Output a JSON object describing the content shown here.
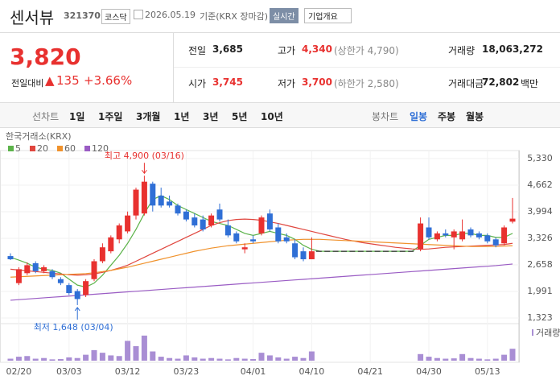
{
  "header": {
    "name": "센서뷰",
    "code": "321370",
    "market": "코스닥",
    "date": "2026.05.19",
    "basis": "기준(KRX 장마감)",
    "realtime": "실시간",
    "overview": "기업개요"
  },
  "quote": {
    "price": "3,820",
    "change_label": "전일대비",
    "change": "135",
    "rate": "+3.66%",
    "items": [
      {
        "label": "전일",
        "value": "3,685"
      },
      {
        "label": "고가",
        "value": "4,340",
        "extra": "(상한가 4,790)"
      },
      {
        "label": "거래량",
        "value": "18,063,272"
      },
      {
        "label": "시가",
        "value": "3,745"
      },
      {
        "label": "저가",
        "value": "3,700",
        "extra": "(하한가 2,580)"
      },
      {
        "label": "거래대금",
        "value": "72,802",
        "unit": "백만"
      }
    ]
  },
  "tabs": {
    "line_label": "선차트",
    "line_periods": [
      "1일",
      "1주일",
      "3개월",
      "1년",
      "3년",
      "5년",
      "10년"
    ],
    "candle_label": "봉차트",
    "candle_periods": [
      "일봉",
      "주봉",
      "월봉"
    ]
  },
  "chart_data": {
    "type": "candlestick",
    "source": "한국거래소(KRX)",
    "up_color": "#e8312f",
    "down_color": "#2f6fd6",
    "categories": [
      null,
      "02/20",
      null,
      null,
      null,
      null,
      null,
      "03/03",
      null,
      null,
      null,
      null,
      null,
      null,
      "03/12",
      null,
      null,
      null,
      null,
      null,
      null,
      "03/23",
      null,
      null,
      null,
      null,
      null,
      null,
      null,
      "04/01",
      null,
      null,
      null,
      null,
      null,
      null,
      "04/10",
      null,
      null,
      null,
      null,
      null,
      null,
      "04/21",
      null,
      null,
      null,
      null,
      null,
      null,
      "04/30",
      null,
      null,
      null,
      null,
      null,
      null,
      "05/13",
      null,
      null,
      null
    ],
    "open": [
      2880,
      2200,
      2450,
      2700,
      2500,
      2500,
      2300,
      2150,
      2000,
      1900,
      2300,
      2750,
      3000,
      3300,
      3500,
      3900,
      3950,
      4700,
      4400,
      4250,
      4150,
      4000,
      3850,
      3800,
      3650,
      4050,
      3650,
      3450,
      3050,
      3300,
      3450,
      3950,
      3600,
      3350,
      3200,
      3000,
      2800,
      3000,
      3000,
      3000,
      3000,
      3000,
      3000,
      3000,
      3000,
      3000,
      3000,
      3000,
      3000,
      3050,
      3600,
      3300,
      3450,
      3350,
      3300,
      3550,
      3450,
      3400,
      3300,
      3200,
      3745
    ],
    "high": [
      2950,
      2600,
      2720,
      2750,
      2650,
      2550,
      2350,
      2200,
      2050,
      2300,
      2800,
      3200,
      3400,
      3700,
      4000,
      4600,
      4900,
      4750,
      4600,
      4400,
      4200,
      4050,
      3950,
      3900,
      3950,
      4200,
      3800,
      3500,
      3200,
      3400,
      3900,
      4050,
      3700,
      3450,
      3300,
      3100,
      3350,
      3000,
      3000,
      3000,
      3000,
      3000,
      3000,
      3000,
      3000,
      3000,
      3000,
      3000,
      3000,
      3850,
      3850,
      3500,
      3550,
      3550,
      3800,
      3600,
      3500,
      3450,
      3350,
      3650,
      4340
    ],
    "low": [
      2780,
      2150,
      2400,
      2450,
      2450,
      2300,
      2150,
      1900,
      1648,
      1850,
      2250,
      2700,
      2950,
      3200,
      3450,
      3800,
      3900,
      4000,
      4100,
      4100,
      3900,
      3750,
      3600,
      3500,
      3600,
      3750,
      3350,
      3200,
      2950,
      3200,
      3400,
      3500,
      3200,
      3200,
      2800,
      2750,
      2800,
      3000,
      3000,
      3000,
      3000,
      3000,
      3000,
      3000,
      3000,
      3000,
      3000,
      3000,
      3000,
      3000,
      3300,
      3250,
      3350,
      3050,
      3250,
      3350,
      3300,
      3200,
      3100,
      3150,
      3700
    ],
    "close": [
      2800,
      2550,
      2650,
      2500,
      2600,
      2350,
      2200,
      1950,
      1800,
      2250,
      2750,
      3100,
      3350,
      3650,
      3900,
      4550,
      4750,
      4150,
      4150,
      4150,
      3950,
      3800,
      3650,
      3550,
      3900,
      3800,
      3400,
      3250,
      3100,
      3250,
      3850,
      3550,
      3250,
      3250,
      2850,
      2800,
      3000,
      3000,
      3000,
      3000,
      3000,
      3000,
      3000,
      3000,
      3000,
      3000,
      3000,
      3000,
      3000,
      3700,
      3350,
      3450,
      3400,
      3500,
      3500,
      3400,
      3350,
      3250,
      3150,
      3600,
      3820
    ],
    "series": [
      {
        "name": "5",
        "color": "#5cb34a",
        "values": [
          2850,
          2780,
          2700,
          2600,
          2550,
          2520,
          2450,
          2300,
          2150,
          2100,
          2200,
          2400,
          2650,
          2900,
          3200,
          3550,
          3950,
          4300,
          4400,
          4300,
          4150,
          4050,
          3950,
          3850,
          3750,
          3700,
          3650,
          3550,
          3450,
          3400,
          3450,
          3500,
          3450,
          3400,
          3300,
          3150,
          3050,
          3000,
          3000,
          3000,
          3000,
          3000,
          3000,
          3000,
          3000,
          3000,
          3000,
          3000,
          3000,
          3150,
          3300,
          3350,
          3400,
          3400,
          3450,
          3450,
          3400,
          3400,
          3350,
          3350,
          3450
        ]
      },
      {
        "name": "20",
        "color": "#e0463e",
        "values": [
          2550,
          2530,
          2510,
          2490,
          2470,
          2450,
          2430,
          2410,
          2400,
          2410,
          2430,
          2470,
          2520,
          2580,
          2650,
          2750,
          2850,
          2950,
          3050,
          3150,
          3250,
          3350,
          3450,
          3550,
          3650,
          3720,
          3770,
          3800,
          3810,
          3800,
          3780,
          3740,
          3700,
          3650,
          3600,
          3550,
          3500,
          3450,
          3400,
          3350,
          3300,
          3260,
          3220,
          3190,
          3160,
          3130,
          3100,
          3080,
          3060,
          3050,
          3060,
          3080,
          3100,
          3110,
          3120,
          3130,
          3140,
          3150,
          3160,
          3170,
          3200
        ]
      },
      {
        "name": "60",
        "color": "#f0922c",
        "values": [
          2350,
          2360,
          2370,
          2380,
          2390,
          2400,
          2410,
          2420,
          2430,
          2440,
          2460,
          2490,
          2520,
          2560,
          2600,
          2650,
          2700,
          2750,
          2800,
          2850,
          2900,
          2950,
          3000,
          3040,
          3080,
          3110,
          3140,
          3160,
          3180,
          3200,
          3220,
          3240,
          3260,
          3280,
          3290,
          3300,
          3300,
          3300,
          3290,
          3280,
          3270,
          3260,
          3250,
          3240,
          3230,
          3220,
          3210,
          3200,
          3190,
          3180,
          3170,
          3160,
          3150,
          3140,
          3130,
          3120,
          3120,
          3120,
          3120,
          3130,
          3140
        ]
      },
      {
        "name": "120",
        "color": "#9a5cc4",
        "values": [
          1770,
          1785,
          1800,
          1815,
          1830,
          1845,
          1860,
          1875,
          1890,
          1905,
          1920,
          1935,
          1950,
          1965,
          1980,
          1995,
          2010,
          2025,
          2040,
          2055,
          2070,
          2085,
          2100,
          2115,
          2130,
          2145,
          2160,
          2175,
          2190,
          2205,
          2220,
          2235,
          2250,
          2265,
          2280,
          2295,
          2310,
          2325,
          2340,
          2355,
          2370,
          2385,
          2400,
          2415,
          2430,
          2445,
          2460,
          2475,
          2490,
          2505,
          2520,
          2535,
          2550,
          2565,
          2580,
          2595,
          2610,
          2625,
          2640,
          2660,
          2680
        ]
      }
    ],
    "ylim": [
      1323,
      5330
    ],
    "yticks": [
      {
        "value": 1323,
        "label": "1,323"
      },
      {
        "value": 1991,
        "label": "1,991"
      },
      {
        "value": 2658,
        "label": "2,658"
      },
      {
        "value": 3326,
        "label": "3,326"
      },
      {
        "value": 3994,
        "label": "3,994"
      },
      {
        "value": 4662,
        "label": "4,662"
      },
      {
        "value": 5330,
        "label": "5,330"
      }
    ],
    "high_label": "최고 4,900 (03/16)",
    "low_label": "최저 1,648 (03/04)",
    "volume": {
      "name": "거래량",
      "color": "#a98ed4",
      "ylim": [
        0,
        50000000
      ],
      "values": [
        3000000,
        6000000,
        7000000,
        3000000,
        4000000,
        2000000,
        2500000,
        5000000,
        4000000,
        9000000,
        16000000,
        12000000,
        8000000,
        7000000,
        30000000,
        22000000,
        38000000,
        14000000,
        6000000,
        4000000,
        3000000,
        8000000,
        5000000,
        3000000,
        4000000,
        3000000,
        2000000,
        4000000,
        3000000,
        2500000,
        12000000,
        8000000,
        5000000,
        3000000,
        6000000,
        4000000,
        14000000,
        0,
        0,
        0,
        0,
        0,
        0,
        0,
        0,
        0,
        0,
        0,
        0,
        10000000,
        6000000,
        4000000,
        3000000,
        3500000,
        10000000,
        4000000,
        3000000,
        2000000,
        3000000,
        9000000,
        18063272
      ]
    }
  }
}
